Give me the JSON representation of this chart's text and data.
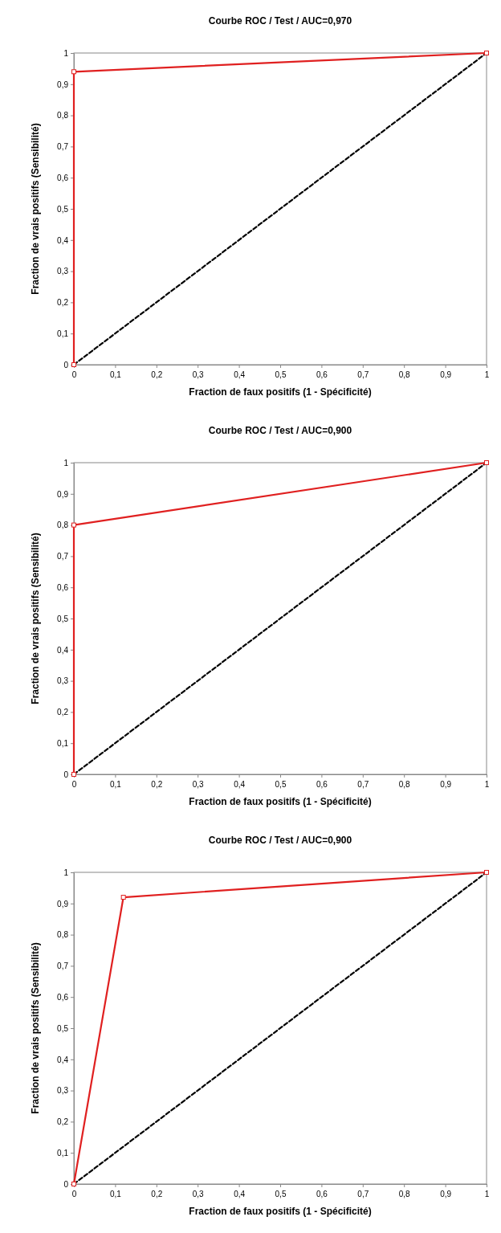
{
  "chart_data": [
    {
      "type": "line",
      "title": "Courbe ROC / Test / AUC=0,970",
      "xlabel": "Fraction de faux positifs (1 - Spécificité)",
      "ylabel": "Fraction de vrais positifs (Sensibilité)",
      "xlim": [
        0,
        1
      ],
      "ylim": [
        0,
        1
      ],
      "xticks": [
        {
          "value": 0,
          "label": "0"
        },
        {
          "value": 0.1,
          "label": "0,1"
        },
        {
          "value": 0.2,
          "label": "0,2"
        },
        {
          "value": 0.3,
          "label": "0,3"
        },
        {
          "value": 0.4,
          "label": "0,4"
        },
        {
          "value": 0.5,
          "label": "0,5"
        },
        {
          "value": 0.6,
          "label": "0,6"
        },
        {
          "value": 0.7,
          "label": "0,7"
        },
        {
          "value": 0.8,
          "label": "0,8"
        },
        {
          "value": 0.9,
          "label": "0,9"
        },
        {
          "value": 1,
          "label": "1"
        }
      ],
      "yticks": [
        {
          "value": 0,
          "label": "0"
        },
        {
          "value": 0.1,
          "label": "0,1"
        },
        {
          "value": 0.2,
          "label": "0,2"
        },
        {
          "value": 0.3,
          "label": "0,3"
        },
        {
          "value": 0.4,
          "label": "0,4"
        },
        {
          "value": 0.5,
          "label": "0,5"
        },
        {
          "value": 0.6,
          "label": "0,6"
        },
        {
          "value": 0.7,
          "label": "0,7"
        },
        {
          "value": 0.8,
          "label": "0,8"
        },
        {
          "value": 0.9,
          "label": "0,9"
        },
        {
          "value": 1,
          "label": "1"
        }
      ],
      "series": [
        {
          "color": "#e02020",
          "x": [
            0,
            0,
            1
          ],
          "values": [
            0,
            0.94,
            1
          ],
          "marker": "square",
          "line_style": "solid"
        },
        {
          "color": "#000000",
          "x": [
            0,
            1
          ],
          "values": [
            0,
            1
          ],
          "marker": "none",
          "line_style": "dashed"
        }
      ]
    },
    {
      "type": "line",
      "title": "Courbe ROC / Test / AUC=0,900",
      "xlabel": "Fraction de faux positifs (1 - Spécificité)",
      "ylabel": "Fraction de vrais positifs (Sensibilité)",
      "xlim": [
        0,
        1
      ],
      "ylim": [
        0,
        1
      ],
      "xticks": [
        {
          "value": 0,
          "label": "0"
        },
        {
          "value": 0.1,
          "label": "0,1"
        },
        {
          "value": 0.2,
          "label": "0,2"
        },
        {
          "value": 0.3,
          "label": "0,3"
        },
        {
          "value": 0.4,
          "label": "0,4"
        },
        {
          "value": 0.5,
          "label": "0,5"
        },
        {
          "value": 0.6,
          "label": "0,6"
        },
        {
          "value": 0.7,
          "label": "0,7"
        },
        {
          "value": 0.8,
          "label": "0,8"
        },
        {
          "value": 0.9,
          "label": "0,9"
        },
        {
          "value": 1,
          "label": "1"
        }
      ],
      "yticks": [
        {
          "value": 0,
          "label": "0"
        },
        {
          "value": 0.1,
          "label": "0,1"
        },
        {
          "value": 0.2,
          "label": "0,2"
        },
        {
          "value": 0.3,
          "label": "0,3"
        },
        {
          "value": 0.4,
          "label": "0,4"
        },
        {
          "value": 0.5,
          "label": "0,5"
        },
        {
          "value": 0.6,
          "label": "0,6"
        },
        {
          "value": 0.7,
          "label": "0,7"
        },
        {
          "value": 0.8,
          "label": "0,8"
        },
        {
          "value": 0.9,
          "label": "0,9"
        },
        {
          "value": 1,
          "label": "1"
        }
      ],
      "series": [
        {
          "color": "#e02020",
          "x": [
            0,
            0,
            1
          ],
          "values": [
            0,
            0.8,
            1
          ],
          "marker": "square",
          "line_style": "solid"
        },
        {
          "color": "#000000",
          "x": [
            0,
            1
          ],
          "values": [
            0,
            1
          ],
          "marker": "none",
          "line_style": "dashed"
        }
      ]
    },
    {
      "type": "line",
      "title": "Courbe ROC / Test / AUC=0,900",
      "xlabel": "Fraction de faux positifs (1 - Spécificité)",
      "ylabel": "Fraction de vrais positifs (Sensibilité)",
      "xlim": [
        0,
        1
      ],
      "ylim": [
        0,
        1
      ],
      "xticks": [
        {
          "value": 0,
          "label": "0"
        },
        {
          "value": 0.1,
          "label": "0,1"
        },
        {
          "value": 0.2,
          "label": "0,2"
        },
        {
          "value": 0.3,
          "label": "0,3"
        },
        {
          "value": 0.4,
          "label": "0,4"
        },
        {
          "value": 0.5,
          "label": "0,5"
        },
        {
          "value": 0.6,
          "label": "0,6"
        },
        {
          "value": 0.7,
          "label": "0,7"
        },
        {
          "value": 0.8,
          "label": "0,8"
        },
        {
          "value": 0.9,
          "label": "0,9"
        },
        {
          "value": 1,
          "label": "1"
        }
      ],
      "yticks": [
        {
          "value": 0,
          "label": "0"
        },
        {
          "value": 0.1,
          "label": "0,1"
        },
        {
          "value": 0.2,
          "label": "0,2"
        },
        {
          "value": 0.3,
          "label": "0,3"
        },
        {
          "value": 0.4,
          "label": "0,4"
        },
        {
          "value": 0.5,
          "label": "0,5"
        },
        {
          "value": 0.6,
          "label": "0,6"
        },
        {
          "value": 0.7,
          "label": "0,7"
        },
        {
          "value": 0.8,
          "label": "0,8"
        },
        {
          "value": 0.9,
          "label": "0,9"
        },
        {
          "value": 1,
          "label": "1"
        }
      ],
      "series": [
        {
          "color": "#e02020",
          "x": [
            0,
            0.12,
            1
          ],
          "values": [
            0,
            0.92,
            1
          ],
          "marker": "square",
          "line_style": "solid"
        },
        {
          "color": "#000000",
          "x": [
            0,
            1
          ],
          "values": [
            0,
            1
          ],
          "marker": "none",
          "line_style": "dashed"
        }
      ]
    }
  ]
}
